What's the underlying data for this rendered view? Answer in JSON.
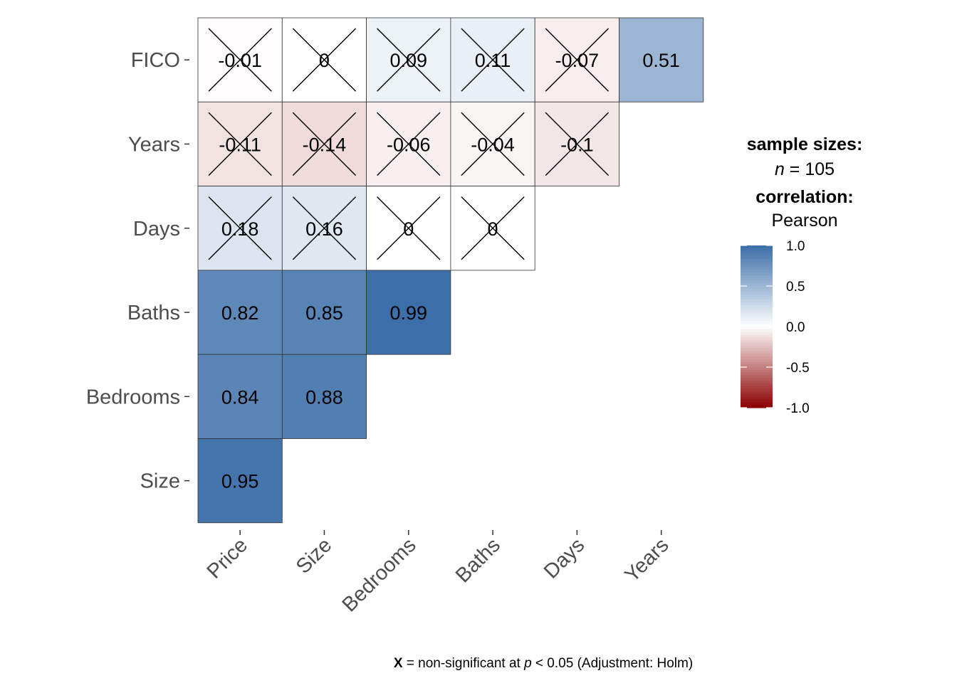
{
  "chart_data": {
    "type": "heatmap",
    "rows": [
      "FICO",
      "Years",
      "Days",
      "Baths",
      "Bedrooms",
      "Size"
    ],
    "columns": [
      "Price",
      "Size",
      "Bedrooms",
      "Baths",
      "Days",
      "Years"
    ],
    "cells": [
      {
        "row": "FICO",
        "col": "Price",
        "value": -0.01,
        "label": "-0.01",
        "nonsignificant": true
      },
      {
        "row": "FICO",
        "col": "Size",
        "value": 0.0,
        "label": "0",
        "nonsignificant": true
      },
      {
        "row": "FICO",
        "col": "Bedrooms",
        "value": 0.09,
        "label": "0.09",
        "nonsignificant": true
      },
      {
        "row": "FICO",
        "col": "Baths",
        "value": 0.11,
        "label": "0.11",
        "nonsignificant": true
      },
      {
        "row": "FICO",
        "col": "Days",
        "value": -0.07,
        "label": "-0.07",
        "nonsignificant": true
      },
      {
        "row": "FICO",
        "col": "Years",
        "value": 0.51,
        "label": "0.51",
        "nonsignificant": false
      },
      {
        "row": "Years",
        "col": "Price",
        "value": -0.11,
        "label": "-0.11",
        "nonsignificant": true
      },
      {
        "row": "Years",
        "col": "Size",
        "value": -0.14,
        "label": "-0.14",
        "nonsignificant": true
      },
      {
        "row": "Years",
        "col": "Bedrooms",
        "value": -0.06,
        "label": "-0.06",
        "nonsignificant": true
      },
      {
        "row": "Years",
        "col": "Baths",
        "value": -0.04,
        "label": "-0.04",
        "nonsignificant": true
      },
      {
        "row": "Years",
        "col": "Days",
        "value": -0.1,
        "label": "-0.1",
        "nonsignificant": true
      },
      {
        "row": "Days",
        "col": "Price",
        "value": 0.18,
        "label": "0.18",
        "nonsignificant": true
      },
      {
        "row": "Days",
        "col": "Size",
        "value": 0.16,
        "label": "0.16",
        "nonsignificant": true
      },
      {
        "row": "Days",
        "col": "Bedrooms",
        "value": 0.0,
        "label": "0",
        "nonsignificant": true
      },
      {
        "row": "Days",
        "col": "Baths",
        "value": 0.0,
        "label": "0",
        "nonsignificant": true
      },
      {
        "row": "Baths",
        "col": "Price",
        "value": 0.82,
        "label": "0.82",
        "nonsignificant": false
      },
      {
        "row": "Baths",
        "col": "Size",
        "value": 0.85,
        "label": "0.85",
        "nonsignificant": false
      },
      {
        "row": "Baths",
        "col": "Bedrooms",
        "value": 0.99,
        "label": "0.99",
        "nonsignificant": false
      },
      {
        "row": "Bedrooms",
        "col": "Price",
        "value": 0.84,
        "label": "0.84",
        "nonsignificant": false
      },
      {
        "row": "Bedrooms",
        "col": "Size",
        "value": 0.88,
        "label": "0.88",
        "nonsignificant": false
      },
      {
        "row": "Size",
        "col": "Price",
        "value": 0.95,
        "label": "0.95",
        "nonsignificant": false
      }
    ],
    "color_scale": {
      "low": "#8b0000",
      "mid": "#ffffff",
      "high": "#3a6ea8",
      "domain": [
        -1,
        1
      ]
    },
    "legend": {
      "title_line1": "sample sizes:",
      "n_italic": "n",
      "n_rest": " = 105",
      "title_line3": "correlation:",
      "title_line4": "Pearson",
      "ticks": [
        "1.0",
        "0.5",
        "0.0",
        "-0.5",
        "-1.0"
      ],
      "tick_values": [
        1.0,
        0.5,
        0.0,
        -0.5,
        -1.0
      ],
      "placement": "right"
    },
    "caption": {
      "x_mark": "X",
      "part1": " = non-significant at ",
      "p_italic": "p",
      "part2": " < 0.05 (Adjustment: Holm)"
    }
  }
}
